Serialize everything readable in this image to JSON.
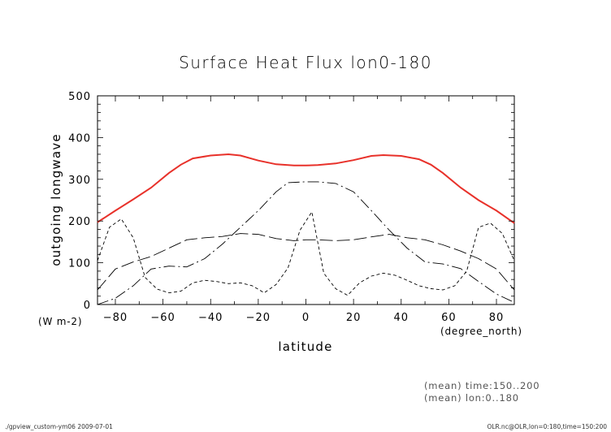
{
  "chart_data": {
    "type": "line",
    "title": "Surface Heat Flux lon0-180",
    "xlabel": "latitude",
    "ylabel": "outgoing longwave",
    "y_unit": "(W m-2)",
    "x_unit": "(degree_north)",
    "xlim": [
      -87.5,
      87.5
    ],
    "ylim": [
      0,
      500
    ],
    "x_ticks": [
      -80,
      -60,
      -40,
      -20,
      0,
      20,
      40,
      60,
      80
    ],
    "y_ticks": [
      0,
      100,
      200,
      300,
      400,
      500
    ],
    "grid": false,
    "series": [
      {
        "style": "solid",
        "color": "#e8312a",
        "x": [
          -87.5,
          -80,
          -72.5,
          -65,
          -57.5,
          -52.5,
          -47.5,
          -40,
          -32.5,
          -27.5,
          -20,
          -12.5,
          -5,
          0,
          5,
          12.5,
          20,
          27.5,
          32.5,
          40,
          47.5,
          52.5,
          57.5,
          65,
          72.5,
          80,
          87.5
        ],
        "y": [
          197,
          225,
          252,
          280,
          315,
          335,
          350,
          357,
          360,
          357,
          345,
          336,
          333,
          333,
          334,
          338,
          346,
          356,
          358,
          356,
          348,
          335,
          315,
          280,
          250,
          225,
          195
        ]
      },
      {
        "style": "dash-dot",
        "color": "#000000",
        "x": [
          -87.5,
          -80,
          -72.5,
          -65,
          -57.5,
          -50,
          -42.5,
          -35,
          -27.5,
          -20,
          -12.5,
          -7.5,
          0,
          5,
          12.5,
          20,
          27.5,
          35,
          42.5,
          50,
          57.5,
          65,
          72.5,
          80,
          87.5
        ],
        "y": [
          0,
          15,
          45,
          85,
          92,
          90,
          110,
          145,
          185,
          225,
          270,
          292,
          294,
          294,
          290,
          270,
          225,
          178,
          135,
          102,
          97,
          86,
          55,
          25,
          5
        ]
      },
      {
        "style": "long-dash",
        "color": "#000000",
        "x": [
          -87.5,
          -80,
          -72.5,
          -65,
          -57.5,
          -50,
          -42.5,
          -35,
          -27.5,
          -20,
          -12.5,
          -5,
          0,
          5,
          12.5,
          20,
          27.5,
          35,
          42.5,
          50,
          57.5,
          65,
          72.5,
          80,
          87.5
        ],
        "y": [
          35,
          85,
          102,
          115,
          135,
          155,
          160,
          163,
          170,
          168,
          158,
          153,
          155,
          155,
          153,
          155,
          162,
          168,
          160,
          155,
          143,
          128,
          110,
          85,
          35
        ]
      },
      {
        "style": "short-dash",
        "color": "#000000",
        "x": [
          -87.5,
          -82.5,
          -77.5,
          -72.5,
          -67.5,
          -62.5,
          -57.5,
          -52.5,
          -47.5,
          -42.5,
          -37.5,
          -32.5,
          -27.5,
          -22.5,
          -17.5,
          -12.5,
          -7.5,
          -2.5,
          2.5,
          7.5,
          12.5,
          17.5,
          22.5,
          27.5,
          32.5,
          37.5,
          42.5,
          47.5,
          52.5,
          57.5,
          62.5,
          67.5,
          72.5,
          77.5,
          82.5,
          87.5
        ],
        "y": [
          105,
          185,
          205,
          160,
          65,
          37,
          28,
          32,
          52,
          58,
          55,
          50,
          52,
          45,
          28,
          48,
          88,
          178,
          222,
          75,
          38,
          22,
          52,
          68,
          75,
          70,
          58,
          45,
          38,
          35,
          45,
          80,
          185,
          195,
          170,
          105
        ]
      }
    ],
    "annotations": [
      "(mean) time:150..200",
      "(mean) lon:0..180"
    ]
  },
  "footer": {
    "left": "./gpview_custom-ym06   2009-07-01",
    "right": "OLR.nc@OLR,lon=0:180,time=150:200"
  }
}
